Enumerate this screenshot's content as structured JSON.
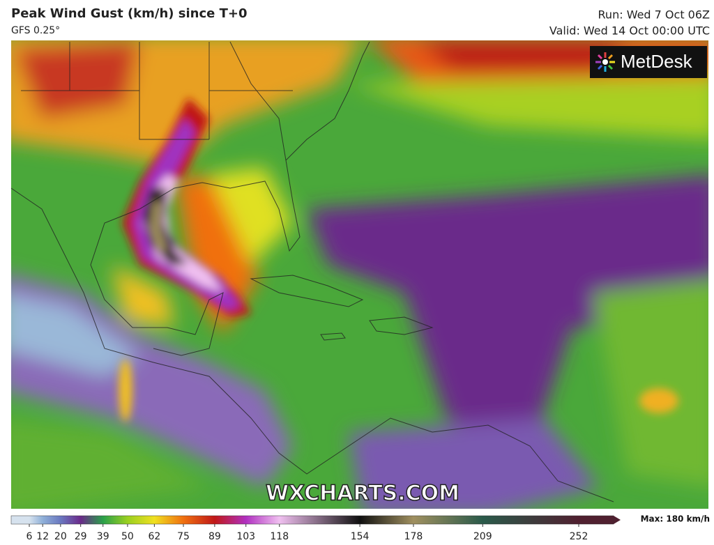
{
  "header": {
    "title": "Peak Wind Gust (km/h) since T+0",
    "model": "GFS 0.25°",
    "run": "Run: Wed 7 Oct 06Z",
    "valid": "Valid: Wed 14 Oct 00:00 UTC"
  },
  "logo": "MetDesk",
  "watermark": "WXCHARTS.COM",
  "legend": {
    "ticks": [
      6,
      12,
      20,
      29,
      39,
      50,
      62,
      75,
      89,
      103,
      118,
      154,
      178,
      209,
      252
    ],
    "colors": [
      "#d6e2ee",
      "#8fb0d8",
      "#6a78c0",
      "#6a2a8a",
      "#2aa04a",
      "#9ad020",
      "#f0e020",
      "#f07010",
      "#c01818",
      "#b030c0",
      "#f0c0f0",
      "#101010",
      "#a09060",
      "#2a5a4a",
      "#502030"
    ],
    "max_label": "Max: 180 km/h"
  }
}
